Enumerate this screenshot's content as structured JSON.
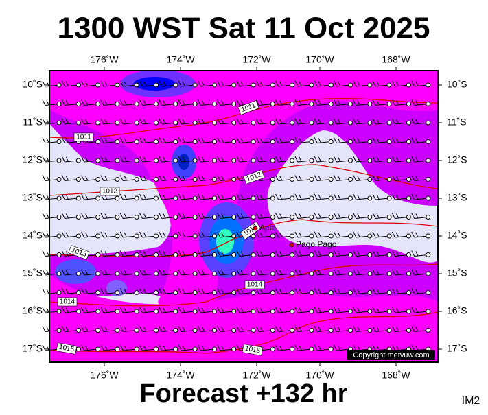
{
  "header": {
    "title": "1300 WST Sat 11 Oct 2025"
  },
  "map": {
    "lon_labels": [
      "176˚W",
      "174˚W",
      "172˚W",
      "170˚W",
      "168˚W"
    ],
    "lat_labels": [
      "10˚S",
      "11˚S",
      "12˚S",
      "13˚S",
      "14˚S",
      "15˚S",
      "16˚S",
      "17˚S"
    ],
    "places": [
      "Apia",
      "Pago Pago"
    ],
    "isobar_labels": [
      "1011",
      "1011",
      "1012",
      "1012",
      "1013",
      "1013",
      "1014",
      "1014",
      "1015",
      "1015"
    ],
    "copyright": "Copyright metvuw.com"
  },
  "footer": {
    "forecast": "Forecast +132 hr",
    "id": "IM2"
  }
}
